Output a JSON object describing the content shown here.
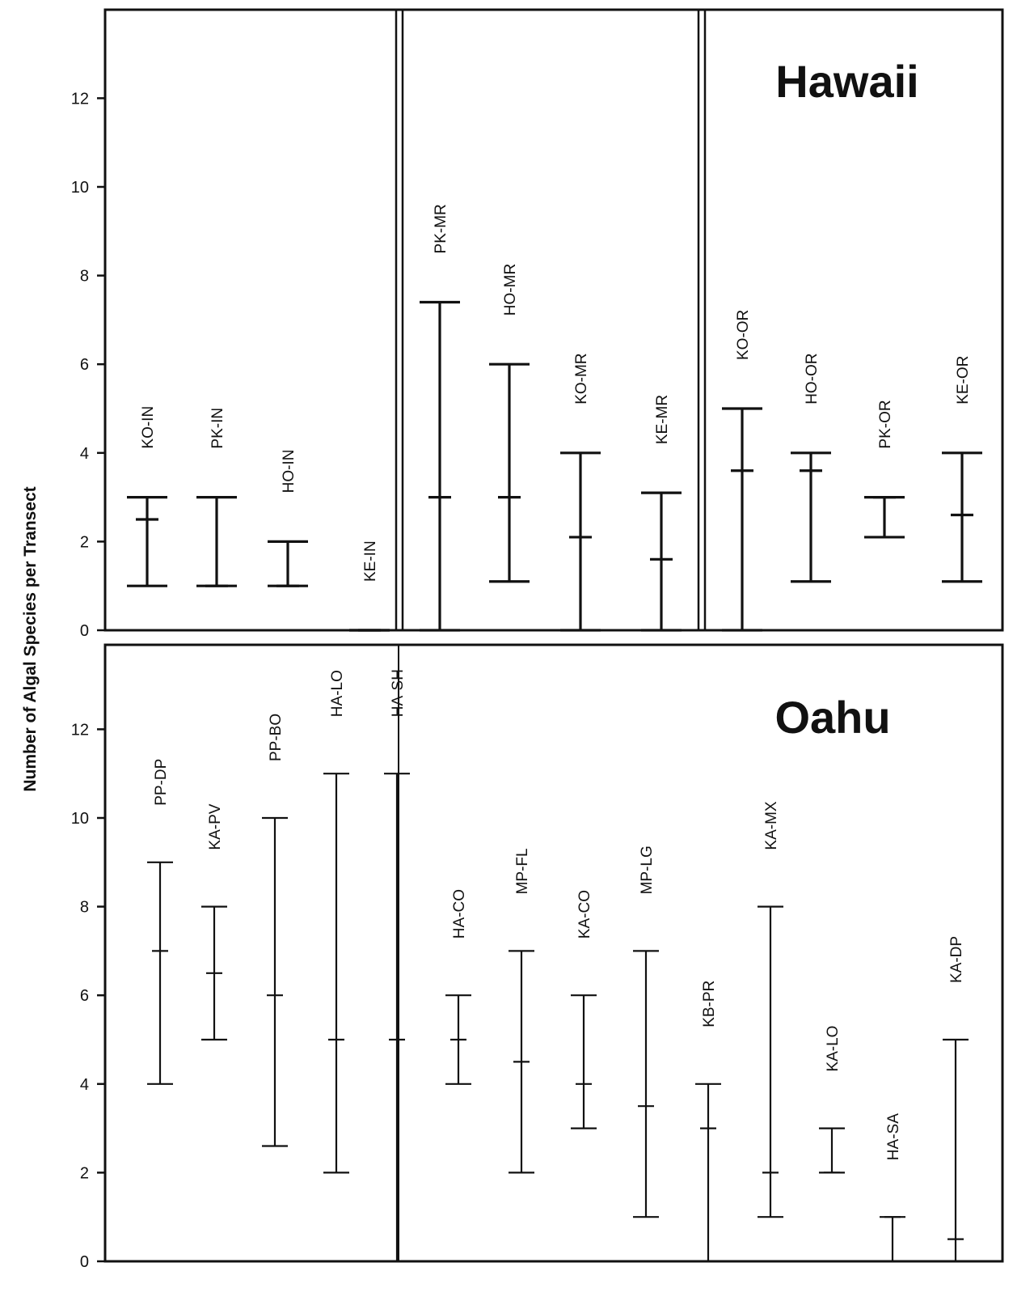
{
  "chart_data": {
    "type": "range",
    "ylabel": "Number of Algal Species per Transect",
    "panels": [
      {
        "title": "Hawaii",
        "ylim": [
          0,
          14
        ],
        "yticks": [
          0,
          2,
          4,
          6,
          8,
          10,
          12
        ],
        "groups": [
          {
            "items": [
              {
                "label": "KO-IN",
                "min": 1,
                "mean": 2.5,
                "max": 3
              },
              {
                "label": "PK-IN",
                "min": 1,
                "mean": 1,
                "max": 3
              },
              {
                "label": "HO-IN",
                "min": 1,
                "mean": 1,
                "max": 2
              },
              {
                "label": "KE-IN",
                "min": 0,
                "mean": 0,
                "max": 0
              }
            ]
          },
          {
            "items": [
              {
                "label": "PK-MR",
                "min": 0,
                "mean": 3,
                "max": 7.4
              },
              {
                "label": "HO-MR",
                "min": 1.1,
                "mean": 3,
                "max": 6
              },
              {
                "label": "KO-MR",
                "min": 0,
                "mean": 2.1,
                "max": 4
              },
              {
                "label": "KE-MR",
                "min": 0,
                "mean": 1.6,
                "max": 3.1
              }
            ]
          },
          {
            "items": [
              {
                "label": "KO-OR",
                "min": 0,
                "mean": 3.6,
                "max": 5
              },
              {
                "label": "HO-OR",
                "min": 1.1,
                "mean": 3.6,
                "max": 4
              },
              {
                "label": "PK-OR",
                "min": 2.1,
                "mean": 3,
                "max": 3
              },
              {
                "label": "KE-OR",
                "min": 1.1,
                "mean": 2.6,
                "max": 4
              }
            ]
          }
        ]
      },
      {
        "title": "Oahu",
        "ylim": [
          0,
          14
        ],
        "yticks": [
          0,
          2,
          4,
          6,
          8,
          10,
          12
        ],
        "groups": [
          {
            "items": [
              {
                "label": "PP-DP",
                "min": 4,
                "mean": 7,
                "max": 9
              },
              {
                "label": "KA-PV",
                "min": 5,
                "mean": 6.5,
                "max": 8
              },
              {
                "label": "PP-BO",
                "min": 2.6,
                "mean": 6,
                "max": 10
              },
              {
                "label": "HA-LO",
                "min": 2,
                "mean": 5,
                "max": 11
              },
              {
                "label": "HA-SH",
                "min": 0,
                "mean": 5,
                "max": 11
              },
              {
                "label": "HA-CO",
                "min": 4,
                "mean": 5,
                "max": 6
              },
              {
                "label": "MP-FL",
                "min": 2,
                "mean": 4.5,
                "max": 7
              },
              {
                "label": "KA-CO",
                "min": 3,
                "mean": 4,
                "max": 6
              },
              {
                "label": "MP-LG",
                "min": 1,
                "mean": 3.5,
                "max": 7
              },
              {
                "label": "KB-PR",
                "min": 0,
                "mean": 3,
                "max": 4
              },
              {
                "label": "KA-MX",
                "min": 1,
                "mean": 2,
                "max": 8
              },
              {
                "label": "KA-LO",
                "min": 2,
                "mean": 2,
                "max": 3
              },
              {
                "label": "HA-SA",
                "min": 0,
                "mean": 1,
                "max": 1
              },
              {
                "label": "KA-DP",
                "min": 0,
                "mean": 0.5,
                "max": 5
              }
            ]
          }
        ]
      }
    ]
  }
}
